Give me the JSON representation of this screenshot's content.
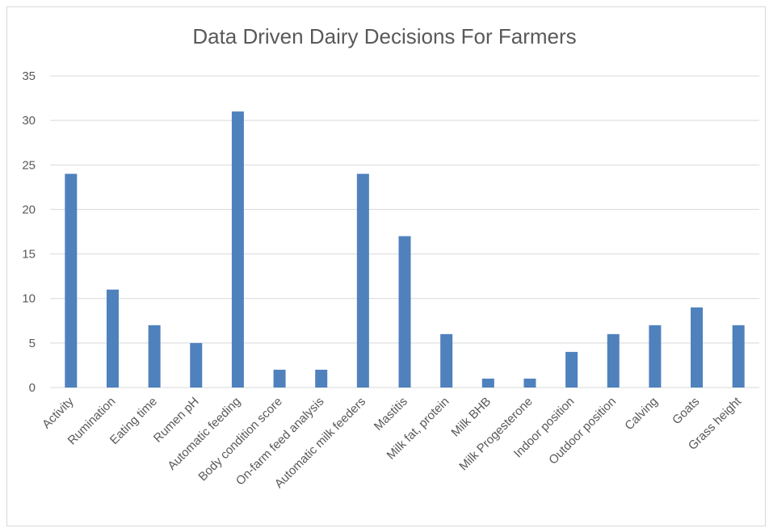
{
  "chart_data": {
    "type": "bar",
    "title": "Data Driven Dairy Decisions For Farmers",
    "xlabel": "",
    "ylabel": "",
    "ylim": [
      0,
      35
    ],
    "yticks": [
      0,
      5,
      10,
      15,
      20,
      25,
      30,
      35
    ],
    "grid": true,
    "legend": "none",
    "color": "#4f81bd",
    "categories": [
      "Activity",
      "Rumination",
      "Eating time",
      "Rumen pH",
      "Automatic feeding",
      "Body condition score",
      "On-farm feed analysis",
      "Automatic milk feeders",
      "Mastitis",
      "Milk fat, protein",
      "Milk BHB",
      "Milk Progesterone",
      "Indoor position",
      "Outdoor position",
      "Calving",
      "Goats",
      "Grass height"
    ],
    "values": [
      24,
      11,
      7,
      5,
      31,
      2,
      2,
      24,
      17,
      6,
      1,
      1,
      4,
      6,
      7,
      9,
      7
    ]
  }
}
